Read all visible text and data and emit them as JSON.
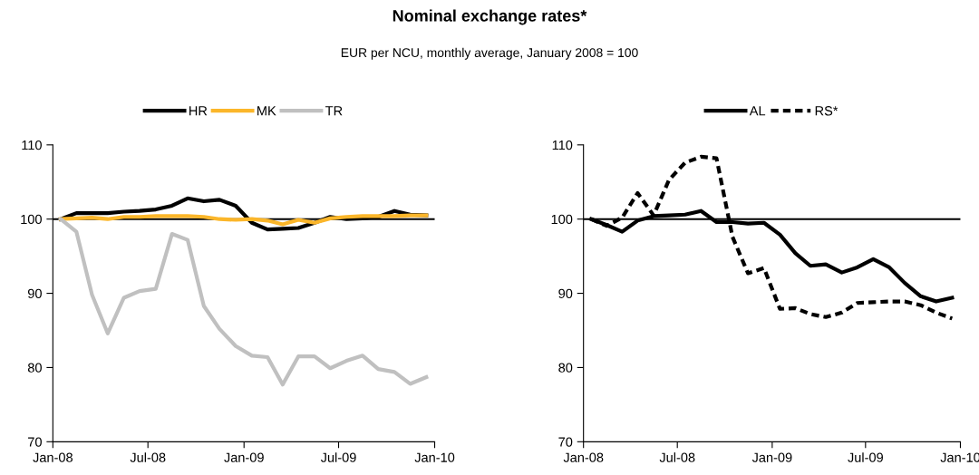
{
  "chart_data": [
    {
      "type": "line",
      "title": "Nominal exchange rates*",
      "subtitle": "EUR per NCU, monthly average, January 2008 = 100",
      "x": [
        "2008-01-16",
        "2008-02-15",
        "2008-03-16",
        "2008-04-15",
        "2008-05-16",
        "2008-06-15",
        "2008-07-16",
        "2008-08-16",
        "2008-09-15",
        "2008-10-16",
        "2008-11-15",
        "2008-12-16",
        "2009-01-16",
        "2009-02-15",
        "2009-03-16",
        "2009-04-15",
        "2009-05-16",
        "2009-06-15",
        "2009-07-16",
        "2009-08-16",
        "2009-09-15",
        "2009-10-16",
        "2009-11-15",
        "2009-12-16"
      ],
      "series": [
        {
          "name": "HR",
          "color": "#000000",
          "values": [
            100,
            100.8,
            100.8,
            100.8,
            101.0,
            101.1,
            101.3,
            101.8,
            102.8,
            102.4,
            102.6,
            101.8,
            99.5,
            98.6,
            98.7,
            98.8,
            99.5,
            100.3,
            100.0,
            100.1,
            100.3,
            101.1,
            100.6,
            100.5
          ]
        },
        {
          "name": "MK",
          "color": "#fbb62a",
          "values": [
            100,
            100.1,
            100.2,
            100.0,
            100.3,
            100.3,
            100.4,
            100.4,
            100.4,
            100.3,
            100.0,
            99.9,
            100.0,
            99.8,
            99.3,
            99.9,
            99.5,
            100.1,
            100.3,
            100.4,
            100.4,
            100.4,
            100.5,
            100.5
          ]
        },
        {
          "name": "TR",
          "color": "#c0c0c0",
          "values": [
            100,
            98.3,
            89.8,
            84.6,
            89.4,
            90.3,
            90.6,
            98.0,
            97.2,
            88.3,
            85.2,
            82.9,
            81.6,
            81.4,
            77.7,
            81.5,
            81.5,
            79.9,
            80.9,
            81.6,
            79.8,
            79.4,
            77.8,
            78.7
          ]
        }
      ],
      "xlim": [
        "2008-01-01",
        "2010-01-01"
      ],
      "xticks": [
        {
          "value": "2008-01-01",
          "label": "Jan-08"
        },
        {
          "value": "2008-07-01",
          "label": "Jul-08"
        },
        {
          "value": "2009-01-01",
          "label": "Jan-09"
        },
        {
          "value": "2009-07-01",
          "label": "Jul-09"
        },
        {
          "value": "2010-01-01",
          "label": "Jan-10"
        }
      ],
      "ylim": [
        70,
        110
      ],
      "yticks": [
        70,
        80,
        90,
        100,
        110
      ],
      "ref_lines": [
        {
          "axis": "y",
          "value": 100,
          "color": "#000000"
        }
      ],
      "legend": "top",
      "grid": false,
      "line_style": "solid",
      "marker": "none"
    },
    {
      "type": "line",
      "x": [
        "2008-01-16",
        "2008-02-15",
        "2008-03-16",
        "2008-04-15",
        "2008-05-16",
        "2008-06-15",
        "2008-07-16",
        "2008-08-16",
        "2008-09-15",
        "2008-10-16",
        "2008-11-15",
        "2008-12-16",
        "2009-01-16",
        "2009-02-15",
        "2009-03-16",
        "2009-04-15",
        "2009-05-16",
        "2009-06-15",
        "2009-07-16",
        "2009-08-16",
        "2009-09-15",
        "2009-10-16",
        "2009-11-15",
        "2009-12-16"
      ],
      "series": [
        {
          "name": "AL",
          "color": "#000000",
          "values": [
            100,
            99.2,
            98.3,
            99.8,
            100.4,
            100.5,
            100.6,
            101.1,
            99.6,
            99.6,
            99.4,
            99.5,
            97.9,
            95.4,
            93.7,
            93.9,
            92.8,
            93.5,
            94.6,
            93.5,
            91.4,
            89.6,
            88.9,
            89.4
          ]
        },
        {
          "name": "RS*",
          "color": "#000000",
          "line_style": "dashed",
          "values": [
            100,
            99.1,
            100.2,
            103.5,
            100.5,
            105.3,
            107.6,
            108.4,
            108.2,
            97.6,
            92.7,
            93.4,
            87.9,
            88.0,
            87.2,
            86.8,
            87.4,
            88.7,
            88.8,
            88.9,
            88.9,
            88.4,
            87.4,
            86.6
          ]
        }
      ],
      "xlim": [
        "2008-01-01",
        "2010-01-01"
      ],
      "xticks": [
        {
          "value": "2008-01-01",
          "label": "Jan-08"
        },
        {
          "value": "2008-07-01",
          "label": "Jul-08"
        },
        {
          "value": "2009-01-01",
          "label": "Jan-09"
        },
        {
          "value": "2009-07-01",
          "label": "Jul-09"
        },
        {
          "value": "2010-01-01",
          "label": "Jan-10"
        }
      ],
      "ylim": [
        70,
        110
      ],
      "yticks": [
        70,
        80,
        90,
        100,
        110
      ],
      "ref_lines": [
        {
          "axis": "y",
          "value": 100,
          "color": "#000000"
        }
      ],
      "legend": "top",
      "grid": false,
      "line_style": "solid",
      "marker": "none"
    }
  ]
}
